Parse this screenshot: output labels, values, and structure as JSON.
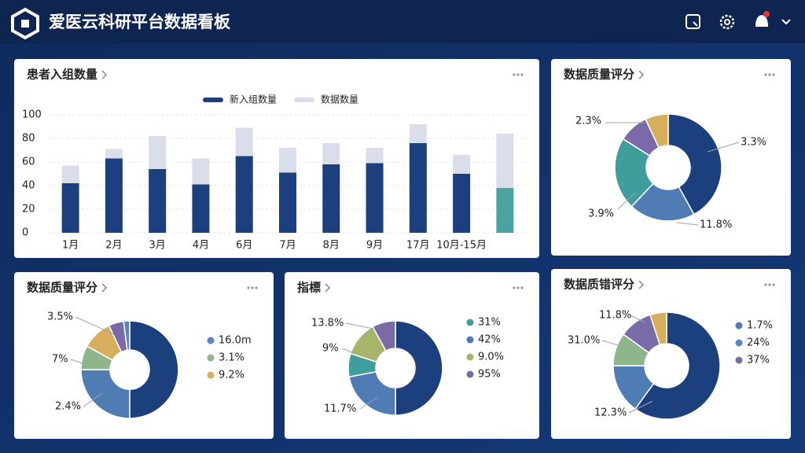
{
  "header": {
    "title": "爱医云科研平台数据看板"
  },
  "chart_data": [
    {
      "type": "bar",
      "title": "患者入组数量",
      "stacked": true,
      "categories": [
        "1月",
        "2月",
        "3月",
        "4月",
        "6月",
        "7月",
        "8月",
        "9月",
        "17月",
        "10月-15月",
        null
      ],
      "series": [
        {
          "name": "新入组数量",
          "color": "#1c3f7e",
          "point_colors": [
            "#1c3f7e",
            "#1c3f7e",
            "#1c3f7e",
            "#1c3f7e",
            "#1c3f7e",
            "#1c3f7e",
            "#1c3f7e",
            "#1c3f7e",
            "#1c3f7e",
            "#1c3f7e",
            "#4aa3a0"
          ],
          "values": [
            42,
            63,
            54,
            41,
            65,
            51,
            58,
            59,
            76,
            50,
            38
          ]
        },
        {
          "name": "数据数量",
          "color": "#d9deea",
          "values": [
            15,
            8,
            28,
            22,
            24,
            21,
            18,
            13,
            16,
            16,
            46
          ]
        }
      ],
      "ylim": [
        0,
        100
      ],
      "yticks": [
        0,
        20,
        40,
        60,
        80,
        100
      ],
      "grid": true
    },
    {
      "type": "donut",
      "title": "数据质量评分",
      "values": [
        42,
        20,
        22,
        9,
        7
      ],
      "colors": [
        "#1c3f7e",
        "#4f7cb3",
        "#3f9e9c",
        "#7b6aa8",
        "#d6ae5c"
      ],
      "annotations": [
        "2.3%",
        "3.3%",
        "3.9%",
        "11.8%"
      ]
    },
    {
      "type": "donut",
      "title": "数据质量评分",
      "values": [
        50,
        25,
        8,
        10,
        5,
        2
      ],
      "colors": [
        "#1c3f7e",
        "#4f7cb3",
        "#8fb58a",
        "#d6ae5c",
        "#7b6aa8",
        "#5b86c4"
      ],
      "annotations": [
        "3.5%",
        "7%",
        "2.4%"
      ],
      "legend": [
        {
          "name": "16.0m",
          "color": "#5b86c4"
        },
        {
          "name": "3.1%",
          "color": "#8fb58a"
        },
        {
          "name": "9.2%",
          "color": "#d6ae5c"
        }
      ]
    },
    {
      "type": "donut",
      "title": "指標",
      "values": [
        50,
        22,
        8,
        12,
        8
      ],
      "colors": [
        "#1c3f7e",
        "#4f7cb3",
        "#3f9e9c",
        "#a7b56a",
        "#7b6aa8"
      ],
      "annotations": [
        "13.8%",
        "9%",
        "11.7%"
      ],
      "legend": [
        {
          "name": "31%",
          "color": "#3f9e9c"
        },
        {
          "name": "42%",
          "color": "#4f7cb3"
        },
        {
          "name": "9.0%",
          "color": "#a7b56a"
        },
        {
          "name": "95%",
          "color": "#7b6aa8"
        }
      ]
    },
    {
      "type": "donut",
      "title": "数据质错评分",
      "values": [
        60,
        15,
        10,
        10,
        5
      ],
      "colors": [
        "#1c3f7e",
        "#4f7cb3",
        "#8fb58a",
        "#7b6aa8",
        "#d6ae5c"
      ],
      "annotations": [
        "11.8%",
        "31.0%",
        "12.3%"
      ],
      "legend": [
        {
          "name": "1.7%",
          "color": "#4f7cb3"
        },
        {
          "name": "24%",
          "color": "#5b86c4"
        },
        {
          "name": "37%",
          "color": "#7b6aa8"
        }
      ]
    }
  ]
}
